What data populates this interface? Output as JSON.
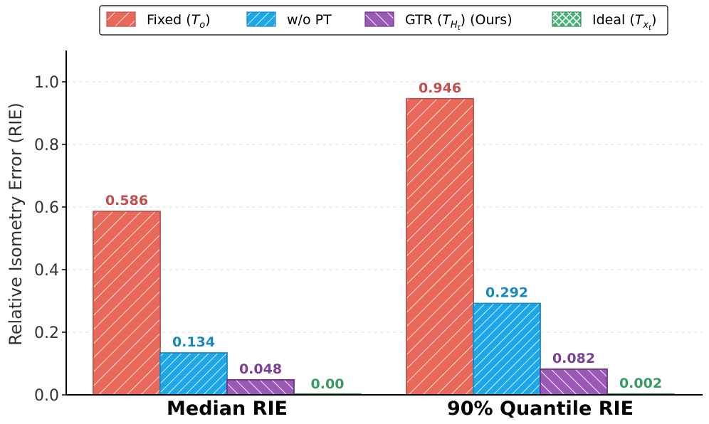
{
  "chart_data": {
    "type": "bar",
    "categories": [
      "Median RIE",
      "90% Quantile RIE"
    ],
    "ylabel": "Relative Isometry Error (RIE)",
    "xlabel": "",
    "ylim": [
      0,
      1.1
    ],
    "yticks": [
      "0.0",
      "0.2",
      "0.4",
      "0.6",
      "0.8",
      "1.0"
    ],
    "ytick_values": [
      0,
      0.2,
      0.4,
      0.6,
      0.8,
      1.0
    ],
    "grid": true,
    "legend_position": "top-center",
    "series": [
      {
        "name": "Fixed",
        "legend_prefix": "Fixed (",
        "legend_var": "T",
        "legend_sub": "o",
        "legend_sub2": "",
        "legend_suffix": ")",
        "values": [
          0.586,
          0.946
        ],
        "labels": [
          "0.586",
          "0.946"
        ],
        "color": "#e8685a",
        "edge": "#c0504d",
        "text_color": "#c0504d",
        "hatch": "diag-fwd"
      },
      {
        "name": "w/o PT",
        "legend_prefix": "w/o PT",
        "legend_var": "",
        "legend_sub": "",
        "legend_sub2": "",
        "legend_suffix": "",
        "values": [
          0.134,
          0.292
        ],
        "labels": [
          "0.134",
          "0.292"
        ],
        "color": "#1ea7e8",
        "edge": "#1a88c0",
        "text_color": "#1a88c0",
        "hatch": "diag-fwd-dense"
      },
      {
        "name": "GTR (Ours)",
        "legend_prefix": "GTR (",
        "legend_var": "T",
        "legend_sub": "H",
        "legend_sub2": "t",
        "legend_suffix": ") (Ours)",
        "values": [
          0.048,
          0.082
        ],
        "labels": [
          "0.048",
          "0.082"
        ],
        "color": "#9b59b6",
        "edge": "#6c3483",
        "text_color": "#7a3f96",
        "hatch": "diag-back"
      },
      {
        "name": "Ideal",
        "legend_prefix": "Ideal (",
        "legend_var": "T",
        "legend_sub": "x",
        "legend_sub2": "t",
        "legend_suffix": ")",
        "values": [
          0.0,
          0.002
        ],
        "labels": [
          "0.00",
          "0.002"
        ],
        "color": "#48b27a",
        "edge": "#2e8b57",
        "text_color": "#3a9a64",
        "hatch": "cross"
      }
    ]
  }
}
